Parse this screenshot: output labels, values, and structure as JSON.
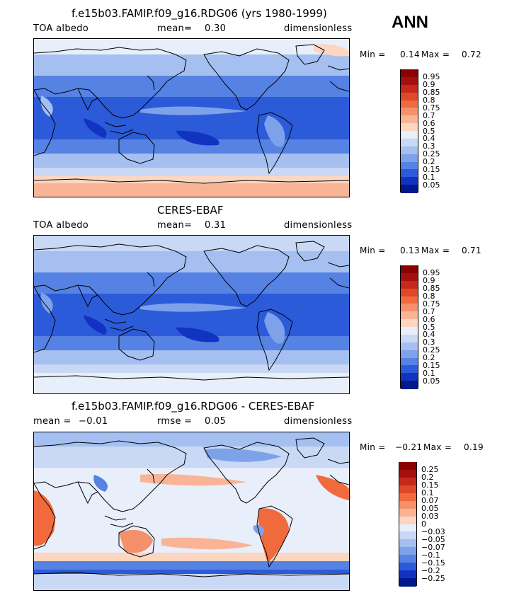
{
  "season_label": "ANN",
  "panels": [
    {
      "title": "f.e15b03.FAMIP.f09_g16.RDG06 (yrs 1980-1999)",
      "left_label": "TOA albedo",
      "mean_label": "mean=",
      "mean_value": "0.30",
      "units": "dimensionless",
      "min_label": "Min =",
      "min_value": "0.14",
      "max_label": "Max =",
      "max_value": "0.72",
      "kind": "model"
    },
    {
      "title": "CERES-EBAF",
      "left_label": "TOA albedo",
      "mean_label": "mean=",
      "mean_value": "0.31",
      "units": "dimensionless",
      "min_label": "Min =",
      "min_value": "0.13",
      "max_label": "Max =",
      "max_value": "0.71",
      "kind": "obs"
    },
    {
      "title": "f.e15b03.FAMIP.f09_g16.RDG06 - CERES-EBAF",
      "left_label": "mean =",
      "left_value": "−0.01",
      "mean_label": "rmse =",
      "mean_value": "0.05",
      "units": "dimensionless",
      "min_label": "Min =",
      "min_value": "−0.21",
      "max_label": "Max =",
      "max_value": "0.19",
      "kind": "diff"
    }
  ],
  "colorbars": {
    "albedo": {
      "labels": [
        "0.95",
        "0.9",
        "0.85",
        "0.8",
        "0.75",
        "0.7",
        "0.6",
        "0.5",
        "0.4",
        "0.3",
        "0.25",
        "0.2",
        "0.15",
        "0.1",
        "0.05"
      ],
      "colors": [
        "#8b0000",
        "#a50f0f",
        "#c8281a",
        "#e0482a",
        "#f06a3e",
        "#f5916a",
        "#f9b496",
        "#fcd6c0",
        "#e8eefa",
        "#c8d8f5",
        "#a4bff0",
        "#7ea2ea",
        "#5582e3",
        "#2c5bd9",
        "#1233c2",
        "#001a8a"
      ]
    },
    "diff": {
      "labels": [
        "0.25",
        "0.2",
        "0.15",
        "0.1",
        "0.07",
        "0.05",
        "0.03",
        "0",
        "−0.03",
        "−0.05",
        "−0.07",
        "−0.1",
        "−0.15",
        "−0.2",
        "−0.25"
      ],
      "colors": [
        "#8b0000",
        "#a50f0f",
        "#c8281a",
        "#e0482a",
        "#f06a3e",
        "#f5916a",
        "#f9b496",
        "#fcd6c0",
        "#e8eefa",
        "#c8d8f5",
        "#a4bff0",
        "#7ea2ea",
        "#5582e3",
        "#2c5bd9",
        "#1233c2",
        "#001a8a"
      ]
    }
  }
}
